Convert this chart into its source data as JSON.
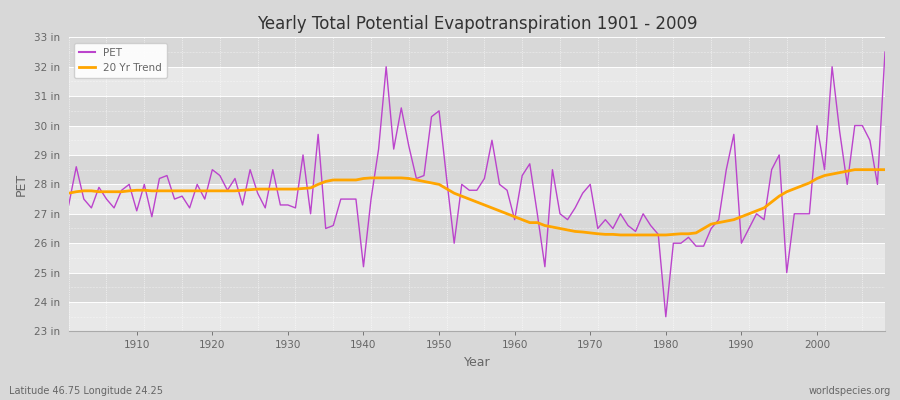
{
  "title": "Yearly Total Potential Evapotranspiration 1901 - 2009",
  "xlabel": "Year",
  "ylabel": "PET",
  "pet_color": "#bb44cc",
  "trend_color": "#FFA500",
  "bg_color": "#d8d8d8",
  "plot_bg_color_light": "#e8e8e8",
  "plot_bg_color_dark": "#d8d8d8",
  "grid_color": "#ffffff",
  "axis_label_color": "#666666",
  "title_color": "#333333",
  "bottom_left_text": "Latitude 46.75 Longitude 24.25",
  "bottom_right_text": "worldspecies.org",
  "ylim_min": 23,
  "ylim_max": 33,
  "xlim_min": 1901,
  "xlim_max": 2009,
  "years": [
    1901,
    1902,
    1903,
    1904,
    1905,
    1906,
    1907,
    1908,
    1909,
    1910,
    1911,
    1912,
    1913,
    1914,
    1915,
    1916,
    1917,
    1918,
    1919,
    1920,
    1921,
    1922,
    1923,
    1924,
    1925,
    1926,
    1927,
    1928,
    1929,
    1930,
    1931,
    1932,
    1933,
    1934,
    1935,
    1936,
    1937,
    1938,
    1939,
    1940,
    1941,
    1942,
    1943,
    1944,
    1945,
    1946,
    1947,
    1948,
    1949,
    1950,
    1951,
    1952,
    1953,
    1954,
    1955,
    1956,
    1957,
    1958,
    1959,
    1960,
    1961,
    1962,
    1963,
    1964,
    1965,
    1966,
    1967,
    1968,
    1969,
    1970,
    1971,
    1972,
    1973,
    1974,
    1975,
    1976,
    1977,
    1978,
    1979,
    1980,
    1981,
    1982,
    1983,
    1984,
    1985,
    1986,
    1987,
    1988,
    1989,
    1990,
    1991,
    1992,
    1993,
    1994,
    1995,
    1996,
    1997,
    1998,
    1999,
    2000,
    2001,
    2002,
    2003,
    2004,
    2005,
    2006,
    2007,
    2008,
    2009
  ],
  "pet": [
    27.3,
    28.6,
    27.5,
    27.2,
    27.9,
    27.5,
    27.2,
    27.8,
    28.0,
    27.1,
    28.0,
    26.9,
    28.2,
    28.3,
    27.5,
    27.6,
    27.2,
    28.0,
    27.5,
    28.5,
    28.3,
    27.8,
    28.2,
    27.3,
    28.5,
    27.7,
    27.2,
    28.5,
    27.3,
    27.3,
    27.2,
    29.0,
    27.0,
    29.7,
    26.5,
    26.6,
    27.5,
    27.5,
    27.5,
    25.2,
    27.5,
    29.2,
    32.0,
    29.2,
    30.6,
    29.3,
    28.2,
    28.3,
    30.3,
    30.5,
    28.2,
    26.0,
    28.0,
    27.8,
    27.8,
    28.2,
    29.5,
    28.0,
    27.8,
    26.8,
    28.3,
    28.7,
    27.0,
    25.2,
    28.5,
    27.0,
    26.8,
    27.2,
    27.7,
    28.0,
    26.5,
    26.8,
    26.5,
    27.0,
    26.6,
    26.4,
    27.0,
    26.6,
    26.3,
    23.5,
    26.0,
    26.0,
    26.2,
    25.9,
    25.9,
    26.5,
    26.8,
    28.5,
    29.7,
    26.0,
    26.5,
    27.0,
    26.8,
    28.5,
    29.0,
    25.0,
    27.0,
    27.0,
    27.0,
    30.0,
    28.5,
    32.0,
    29.8,
    28.0,
    30.0,
    30.0,
    29.5,
    28.0,
    32.5
  ],
  "trend_years": [
    1901,
    1902,
    1903,
    1904,
    1905,
    1906,
    1907,
    1908,
    1909,
    1910,
    1911,
    1912,
    1913,
    1914,
    1915,
    1916,
    1917,
    1918,
    1919,
    1920,
    1921,
    1922,
    1923,
    1924,
    1925,
    1926,
    1927,
    1928,
    1929,
    1930,
    1931,
    1932,
    1933,
    1934,
    1935,
    1936,
    1937,
    1938,
    1939,
    1940,
    1941,
    1942,
    1943,
    1944,
    1945,
    1946,
    1947,
    1948,
    1949,
    1950,
    1951,
    1952,
    1953,
    1954,
    1955,
    1956,
    1957,
    1958,
    1959,
    1960,
    1961,
    1962,
    1963,
    1964,
    1965,
    1966,
    1967,
    1968,
    1969,
    1970,
    1971,
    1972,
    1973,
    1974,
    1975,
    1976,
    1977,
    1978,
    1979,
    1980,
    1981,
    1982,
    1983,
    1984,
    1985,
    1986,
    1987,
    1988,
    1989,
    1990,
    1991,
    1992,
    1993,
    1994,
    1995,
    1996,
    1997,
    1998,
    1999,
    2000,
    2001,
    2002,
    2003,
    2004,
    2005,
    2006,
    2007,
    2008,
    2009
  ],
  "trend": [
    27.7,
    27.75,
    27.78,
    27.78,
    27.75,
    27.75,
    27.75,
    27.75,
    27.78,
    27.8,
    27.8,
    27.78,
    27.78,
    27.78,
    27.78,
    27.78,
    27.78,
    27.78,
    27.78,
    27.78,
    27.78,
    27.78,
    27.78,
    27.8,
    27.82,
    27.84,
    27.84,
    27.84,
    27.84,
    27.84,
    27.84,
    27.86,
    27.88,
    28.0,
    28.1,
    28.15,
    28.15,
    28.15,
    28.15,
    28.2,
    28.22,
    28.22,
    28.22,
    28.22,
    28.22,
    28.2,
    28.15,
    28.1,
    28.05,
    28.0,
    27.85,
    27.7,
    27.6,
    27.5,
    27.4,
    27.3,
    27.2,
    27.1,
    27.0,
    26.9,
    26.8,
    26.7,
    26.7,
    26.6,
    26.55,
    26.5,
    26.45,
    26.4,
    26.38,
    26.35,
    26.32,
    26.3,
    26.3,
    26.28,
    26.28,
    26.28,
    26.28,
    26.28,
    26.28,
    26.28,
    26.3,
    26.32,
    26.32,
    26.35,
    26.5,
    26.65,
    26.7,
    26.75,
    26.8,
    26.9,
    27.0,
    27.1,
    27.2,
    27.4,
    27.6,
    27.75,
    27.85,
    27.95,
    28.05,
    28.2,
    28.3,
    28.35,
    28.4,
    28.45,
    28.5,
    28.5,
    28.5,
    28.5,
    28.5
  ]
}
